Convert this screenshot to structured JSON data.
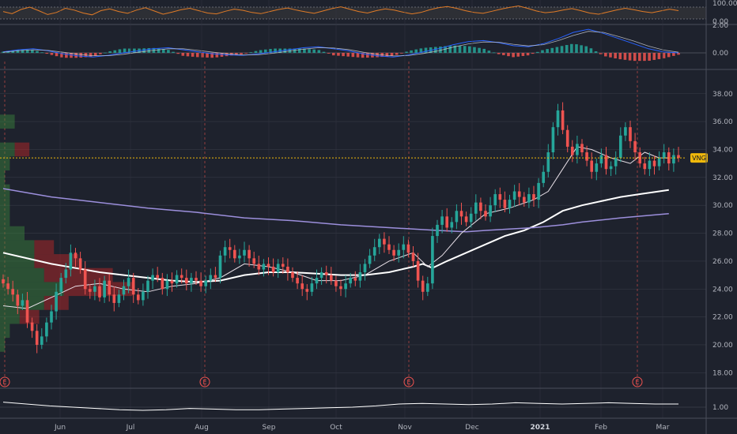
{
  "chart_data": [
    {
      "panel": "rsi",
      "type": "line",
      "yticks": [
        "100.00",
        "0.00"
      ],
      "band": [
        30,
        70
      ],
      "values": [
        55,
        48,
        62,
        70,
        58,
        45,
        52,
        66,
        60,
        50,
        44,
        58,
        64,
        55,
        49,
        60,
        68,
        57,
        46,
        53,
        61,
        66,
        58,
        50,
        47,
        56,
        63,
        59,
        52,
        48,
        55,
        62,
        67,
        60,
        54,
        49,
        57,
        65,
        71,
        63,
        55,
        50,
        58,
        64,
        60,
        53,
        47,
        52,
        61,
        68,
        72,
        66,
        58,
        52,
        49,
        56,
        63,
        69,
        74,
        66,
        57,
        51,
        54,
        60,
        65,
        58,
        50,
        46,
        53,
        60,
        66,
        61,
        55,
        51,
        57,
        63,
        58
      ]
    },
    {
      "panel": "macd",
      "type": "line",
      "yticks": [
        "2.00",
        "0.00"
      ],
      "macd": [
        0.05,
        0.15,
        0.2,
        0.1,
        -0.05,
        -0.15,
        -0.2,
        -0.12,
        0.0,
        0.1,
        0.2,
        0.25,
        0.15,
        0.05,
        -0.05,
        -0.1,
        -0.12,
        -0.05,
        0.05,
        0.15,
        0.25,
        0.3,
        0.2,
        0.1,
        -0.05,
        -0.15,
        -0.2,
        -0.1,
        0.05,
        0.2,
        0.4,
        0.55,
        0.6,
        0.5,
        0.35,
        0.3,
        0.45,
        0.7,
        1.0,
        1.15,
        0.95,
        0.7,
        0.45,
        0.2,
        0.05,
        0.0
      ],
      "signal": [
        0.03,
        0.1,
        0.15,
        0.12,
        0.03,
        -0.07,
        -0.14,
        -0.14,
        -0.07,
        0.03,
        0.12,
        0.2,
        0.2,
        0.12,
        0.03,
        -0.05,
        -0.1,
        -0.09,
        -0.02,
        0.08,
        0.18,
        0.25,
        0.24,
        0.16,
        0.03,
        -0.08,
        -0.15,
        -0.13,
        -0.03,
        0.1,
        0.28,
        0.44,
        0.53,
        0.52,
        0.42,
        0.34,
        0.4,
        0.6,
        0.85,
        1.05,
        1.0,
        0.8,
        0.58,
        0.33,
        0.14,
        0.03
      ]
    },
    {
      "panel": "price",
      "type": "candlestick",
      "yticks": [
        "38.00",
        "36.00",
        "34.00",
        "32.00",
        "30.00",
        "28.00",
        "26.00",
        "24.00",
        "22.00",
        "20.00",
        "18.00"
      ],
      "ylim": [
        17,
        39.4
      ],
      "xticks": [
        "Jun",
        "Jul",
        "Aug",
        "Sep",
        "Oct",
        "Nov",
        "Dec",
        "2021",
        "Feb",
        "Mar"
      ],
      "symbol_badge": "VNG",
      "last_price": 33.4,
      "closes": [
        24.4,
        24.0,
        23.6,
        22.8,
        23.2,
        21.6,
        21.0,
        20.0,
        20.6,
        21.6,
        22.4,
        23.8,
        24.8,
        25.4,
        26.6,
        26.2,
        25.4,
        24.0,
        23.8,
        24.2,
        23.4,
        24.6,
        23.6,
        23.0,
        23.6,
        24.2,
        24.8,
        23.6,
        23.2,
        23.8,
        24.6,
        25.0,
        24.8,
        24.0,
        24.6,
        24.4,
        25.0,
        24.8,
        24.4,
        24.8,
        24.6,
        24.2,
        24.6,
        25.0,
        24.8,
        26.4,
        27.0,
        26.8,
        26.2,
        26.4,
        26.8,
        26.2,
        25.8,
        25.4,
        25.8,
        25.6,
        25.2,
        25.8,
        25.6,
        25.2,
        24.8,
        24.4,
        24.0,
        23.8,
        24.4,
        24.8,
        25.2,
        25.0,
        24.6,
        24.2,
        24.0,
        24.4,
        24.8,
        24.6,
        25.2,
        25.8,
        26.4,
        27.0,
        27.6,
        27.2,
        26.8,
        26.4,
        26.8,
        27.2,
        26.6,
        26.0,
        24.6,
        23.8,
        24.4,
        27.8,
        28.6,
        29.2,
        28.4,
        28.8,
        29.6,
        29.2,
        28.8,
        29.4,
        30.2,
        29.6,
        29.2,
        30.0,
        30.8,
        30.4,
        29.8,
        30.4,
        31.0,
        30.6,
        30.2,
        30.8,
        30.4,
        31.6,
        32.4,
        33.8,
        35.6,
        36.8,
        35.4,
        34.2,
        33.6,
        34.4,
        33.8,
        33.2,
        32.4,
        33.0,
        33.6,
        32.6,
        32.8,
        33.4,
        35.0,
        35.6,
        34.6,
        33.8,
        33.0,
        32.6,
        33.2,
        32.8,
        33.4,
        33.8,
        33.0,
        33.6,
        33.4
      ],
      "series": [
        {
          "name": "",
          "color": "#ffffff",
          "width": 2,
          "points": [
            [
              0,
              26.6
            ],
            [
              5,
              26.2
            ],
            [
              10,
              25.8
            ],
            [
              15,
              25.5
            ],
            [
              20,
              25.2
            ],
            [
              25,
              25.0
            ],
            [
              30,
              24.8
            ],
            [
              35,
              24.6
            ],
            [
              40,
              24.5
            ],
            [
              45,
              24.6
            ],
            [
              50,
              25.0
            ],
            [
              55,
              25.2
            ],
            [
              60,
              25.2
            ],
            [
              65,
              25.1
            ],
            [
              70,
              25.0
            ],
            [
              75,
              25.0
            ],
            [
              80,
              25.2
            ],
            [
              85,
              25.6
            ],
            [
              87,
              25.8
            ],
            [
              89,
              25.5
            ],
            [
              92,
              26.0
            ],
            [
              96,
              26.6
            ],
            [
              100,
              27.2
            ],
            [
              104,
              27.8
            ],
            [
              108,
              28.2
            ],
            [
              112,
              28.8
            ],
            [
              116,
              29.6
            ],
            [
              120,
              30.0
            ],
            [
              124,
              30.3
            ],
            [
              128,
              30.6
            ],
            [
              132,
              30.8
            ],
            [
              138,
              31.1
            ]
          ]
        },
        {
          "name": "",
          "color": "#9c8fdc",
          "width": 1.5,
          "points": [
            [
              0,
              31.2
            ],
            [
              10,
              30.6
            ],
            [
              20,
              30.2
            ],
            [
              30,
              29.8
            ],
            [
              40,
              29.5
            ],
            [
              50,
              29.1
            ],
            [
              60,
              28.9
            ],
            [
              70,
              28.6
            ],
            [
              80,
              28.4
            ],
            [
              90,
              28.2
            ],
            [
              96,
              28.1
            ],
            [
              100,
              28.2
            ],
            [
              110,
              28.4
            ],
            [
              116,
              28.6
            ],
            [
              120,
              28.8
            ],
            [
              128,
              29.1
            ],
            [
              138,
              29.4
            ]
          ]
        },
        {
          "name": "",
          "color": "#e8e0e8",
          "width": 1,
          "points": [
            [
              0,
              22.8
            ],
            [
              5,
              22.6
            ],
            [
              10,
              23.4
            ],
            [
              15,
              24.2
            ],
            [
              20,
              24.4
            ],
            [
              25,
              24.0
            ],
            [
              30,
              23.8
            ],
            [
              35,
              24.2
            ],
            [
              40,
              24.4
            ],
            [
              45,
              24.8
            ],
            [
              50,
              25.8
            ],
            [
              55,
              25.6
            ],
            [
              60,
              25.2
            ],
            [
              65,
              24.6
            ],
            [
              70,
              24.6
            ],
            [
              75,
              25.0
            ],
            [
              80,
              26.0
            ],
            [
              85,
              26.6
            ],
            [
              88,
              25.6
            ],
            [
              91,
              26.4
            ],
            [
              95,
              28.0
            ],
            [
              100,
              29.4
            ],
            [
              105,
              29.8
            ],
            [
              110,
              30.4
            ],
            [
              113,
              31.0
            ],
            [
              116,
              32.6
            ],
            [
              119,
              34.2
            ],
            [
              122,
              34.0
            ],
            [
              126,
              33.4
            ],
            [
              130,
              33.0
            ],
            [
              133,
              33.8
            ],
            [
              136,
              33.4
            ],
            [
              138,
              33.4
            ]
          ]
        }
      ],
      "earnings_markers": [
        "E",
        "E",
        "E",
        "E"
      ],
      "volume_profile": [
        {
          "price": 36.0,
          "up": 0.03,
          "down": 0.0
        },
        {
          "price": 34.0,
          "up": 0.03,
          "down": 0.03
        },
        {
          "price": 33.0,
          "up": 0.02,
          "down": 0.0
        },
        {
          "price": 32.0,
          "up": 0.01,
          "down": 0.0
        },
        {
          "price": 31.0,
          "up": 0.02,
          "down": 0.0
        },
        {
          "price": 30.0,
          "up": 0.02,
          "down": 0.0
        },
        {
          "price": 29.0,
          "up": 0.02,
          "down": 0.0
        },
        {
          "price": 28.0,
          "up": 0.05,
          "down": 0.0
        },
        {
          "price": 27.0,
          "up": 0.07,
          "down": 0.04
        },
        {
          "price": 26.0,
          "up": 0.07,
          "down": 0.09
        },
        {
          "price": 25.0,
          "up": 0.09,
          "down": 0.14
        },
        {
          "price": 24.0,
          "up": 0.13,
          "down": 0.14
        },
        {
          "price": 23.0,
          "up": 0.09,
          "down": 0.05
        },
        {
          "price": 22.0,
          "up": 0.04,
          "down": 0.04
        },
        {
          "price": 21.0,
          "up": 0.02,
          "down": 0.0
        },
        {
          "price": 20.0,
          "up": 0.01,
          "down": 0.0
        }
      ]
    },
    {
      "panel": "ratio",
      "type": "line",
      "yticks": [
        "1.00"
      ],
      "values": [
        1.08,
        1.05,
        1.02,
        1.0,
        0.98,
        0.96,
        0.95,
        0.96,
        0.98,
        0.97,
        0.96,
        0.96,
        0.97,
        0.98,
        0.99,
        1.0,
        1.02,
        1.05,
        1.06,
        1.05,
        1.04,
        1.05,
        1.07,
        1.06,
        1.05,
        1.06,
        1.07,
        1.06,
        1.05,
        1.05
      ]
    }
  ]
}
